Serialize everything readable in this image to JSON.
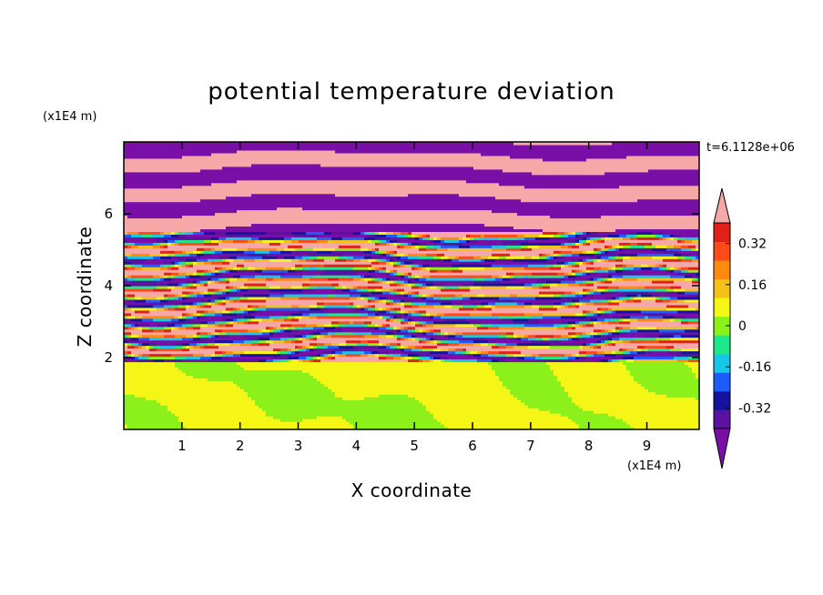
{
  "chart_data": {
    "type": "heatmap",
    "title": "potential temperature deviation",
    "xlabel": "X coordinate",
    "ylabel": "Z coordinate",
    "x_unit": "(x1E4 m)",
    "y_unit": "(x1E4 m)",
    "annotation": "t=6.1128e+06",
    "xlim": [
      0,
      9.9
    ],
    "ylim": [
      0,
      8
    ],
    "xticks": [
      "1",
      "2",
      "3",
      "4",
      "5",
      "6",
      "7",
      "8",
      "9"
    ],
    "yticks": [
      "2",
      "4",
      "6"
    ],
    "colorbar": {
      "levels": [
        -0.48,
        -0.4,
        -0.32,
        -0.24,
        -0.16,
        -0.08,
        0,
        0.08,
        0.16,
        0.24,
        0.32,
        0.4,
        0.48
      ],
      "tick_labels": [
        "0.32",
        "0.16",
        "0",
        "-0.16",
        "-0.32"
      ],
      "tick_values": [
        0.32,
        0.16,
        0,
        -0.16,
        -0.32
      ],
      "colors_low_to_high": [
        "#7a0fa8",
        "#5b12a0",
        "#16149e",
        "#1f5cff",
        "#19c6e8",
        "#1ee88a",
        "#8cf01a",
        "#f5f516",
        "#f2c21a",
        "#ff8a10",
        "#ff4a1a",
        "#e0201a",
        "#f6a8a8"
      ],
      "extend": "both"
    },
    "layers": [
      {
        "z_range": [
          0,
          1.9
        ],
        "description_free": true,
        "dominant_values": [
          0.04,
          -0.04
        ]
      },
      {
        "z_range": [
          1.9,
          5.5
        ],
        "dominant_values": [
          -0.48,
          0.48,
          0.2,
          -0.2,
          0.0
        ]
      },
      {
        "z_range": [
          5.5,
          8
        ],
        "dominant_values": [
          0.48,
          -0.48
        ]
      }
    ]
  }
}
